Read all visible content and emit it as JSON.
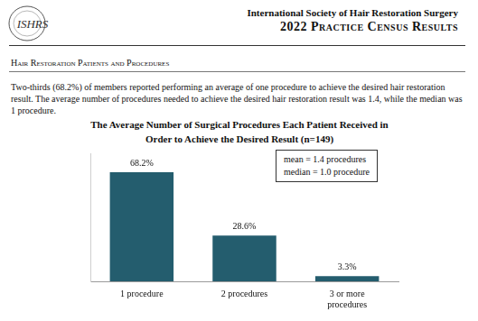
{
  "header": {
    "logo": "ISHRS",
    "organization": "International Society of Hair Restoration Surgery",
    "report": "2022 Practice Census Results"
  },
  "section": {
    "heading": "Hair Restoration Patients and Procedures",
    "paragraph": "Two-thirds (68.2%) of members reported performing an average of one procedure to achieve the desired hair restoration result. The average number of procedures needed to achieve the desired hair restoration result was 1.4, while the median was 1 procedure."
  },
  "chart_data": {
    "type": "bar",
    "title": "The Average Number of Surgical Procedures Each Patient Received in Order to Achieve the Desired Result (n=149)",
    "categories": [
      "1 procedure",
      "2 procedures",
      "3 or more procedures"
    ],
    "values": [
      68.2,
      28.6,
      3.3
    ],
    "value_labels": [
      "68.2%",
      "28.6%",
      "3.3%"
    ],
    "color": "#245d6e",
    "ylim": [
      0,
      80
    ],
    "grid": false,
    "tick_labels": "x",
    "data_labels": true,
    "annotations": [
      "mean = 1.4 procedures",
      "median = 1.0 procedure"
    ]
  }
}
